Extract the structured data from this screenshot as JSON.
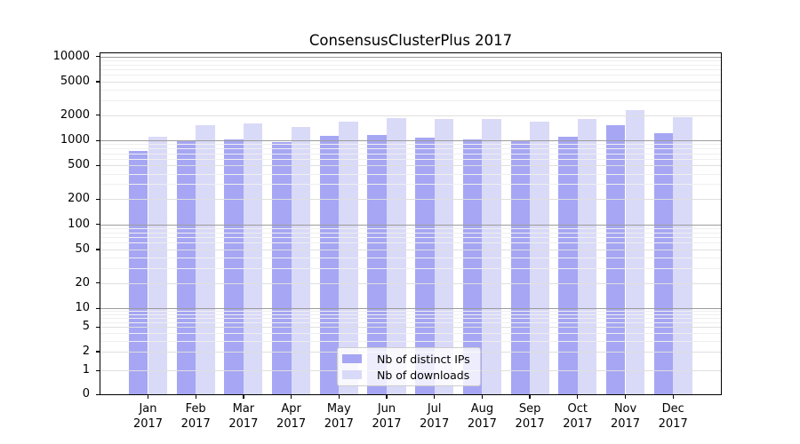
{
  "chart_data": {
    "type": "bar",
    "title": "ConsensusClusterPlus 2017",
    "xlabel": "",
    "ylabel": "",
    "yscale": "symlog",
    "ylim": [
      0,
      11000
    ],
    "grid": true,
    "legend_position": "lower center",
    "yticks": [
      0,
      1,
      2,
      5,
      10,
      20,
      50,
      100,
      200,
      500,
      1000,
      2000,
      5000,
      10000
    ],
    "categories": [
      "Jan 2017",
      "Feb 2017",
      "Mar 2017",
      "Apr 2017",
      "May 2017",
      "Jun 2017",
      "Jul 2017",
      "Aug 2017",
      "Sep 2017",
      "Oct 2017",
      "Nov 2017",
      "Dec 2017"
    ],
    "months": [
      {
        "label": "Jan",
        "year": "2017"
      },
      {
        "label": "Feb",
        "year": "2017"
      },
      {
        "label": "Mar",
        "year": "2017"
      },
      {
        "label": "Apr",
        "year": "2017"
      },
      {
        "label": "May",
        "year": "2017"
      },
      {
        "label": "Jun",
        "year": "2017"
      },
      {
        "label": "Jul",
        "year": "2017"
      },
      {
        "label": "Aug",
        "year": "2017"
      },
      {
        "label": "Sep",
        "year": "2017"
      },
      {
        "label": "Oct",
        "year": "2017"
      },
      {
        "label": "Nov",
        "year": "2017"
      },
      {
        "label": "Dec",
        "year": "2017"
      }
    ],
    "series": [
      {
        "name": "Nb of distinct IPs",
        "color": "#a6a6f4",
        "values": [
          740,
          1000,
          1020,
          950,
          1140,
          1160,
          1070,
          1030,
          1010,
          1110,
          1500,
          1230
        ]
      },
      {
        "name": "Nb of downloads",
        "color": "#d9d9f8",
        "values": [
          1100,
          1500,
          1600,
          1430,
          1680,
          1830,
          1800,
          1800,
          1680,
          1790,
          2310,
          1870
        ]
      }
    ]
  },
  "colors": {
    "grid_decade": "#9c9c9c",
    "grid_labeled": "#dfdfdf",
    "grid_minor": "#efefef",
    "axis": "#000000",
    "background": "#ffffff"
  }
}
